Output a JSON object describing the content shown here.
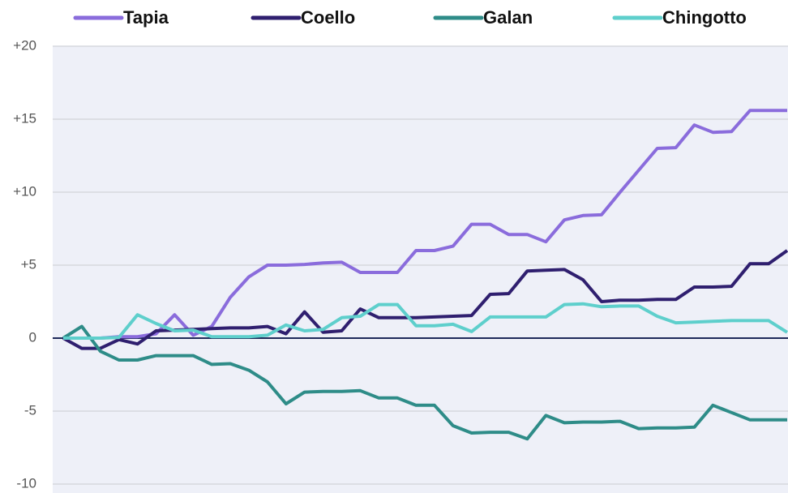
{
  "chart_data": {
    "type": "line",
    "categories": [
      null,
      null,
      null,
      null,
      null,
      null,
      null,
      null,
      null,
      null,
      null,
      null,
      null,
      null,
      null,
      null,
      null,
      null,
      null,
      null,
      null,
      null,
      null,
      null,
      null,
      null,
      null,
      null,
      null,
      null,
      null,
      null,
      null,
      null,
      null,
      null,
      null,
      null,
      null,
      null
    ],
    "series": [
      {
        "name": "Tapia",
        "color": "#8a6cdc",
        "values": [
          0,
          0,
          0,
          0.1,
          0.1,
          0.3,
          1.6,
          0.2,
          0.8,
          2.8,
          4.2,
          5.0,
          5.0,
          5.05,
          5.15,
          5.2,
          4.5,
          4.5,
          4.5,
          6.0,
          6.0,
          6.3,
          7.8,
          7.8,
          7.1,
          7.1,
          6.6,
          8.1,
          8.4,
          8.45,
          10.0,
          11.5,
          13.0,
          13.05,
          14.6,
          14.1,
          14.15,
          15.6,
          15.6,
          15.6
        ]
      },
      {
        "name": "Coello",
        "color": "#2f1f6f",
        "values": [
          0,
          -0.7,
          -0.7,
          -0.1,
          -0.4,
          0.5,
          0.55,
          0.6,
          0.65,
          0.7,
          0.7,
          0.8,
          0.3,
          1.8,
          0.4,
          0.5,
          2.0,
          1.4,
          1.4,
          1.4,
          1.45,
          1.5,
          1.55,
          3.0,
          3.05,
          4.6,
          4.65,
          4.7,
          4.0,
          2.5,
          2.6,
          2.6,
          2.65,
          2.65,
          3.5,
          3.5,
          3.55,
          5.1,
          5.1,
          6.0
        ]
      },
      {
        "name": "Galan",
        "color": "#2e8c88",
        "values": [
          0,
          0.8,
          -0.9,
          -1.5,
          -1.5,
          -1.2,
          -1.2,
          -1.2,
          -1.8,
          -1.75,
          -2.2,
          -3.0,
          -4.5,
          -3.7,
          -3.65,
          -3.65,
          -3.6,
          -4.1,
          -4.1,
          -4.6,
          -4.6,
          -6.0,
          -6.5,
          -6.45,
          -6.45,
          -6.9,
          -5.3,
          -5.8,
          -5.75,
          -5.75,
          -5.7,
          -6.2,
          -6.15,
          -6.15,
          -6.1,
          -4.6,
          -5.1,
          -5.6,
          -5.6,
          -5.6
        ]
      },
      {
        "name": "Chingotto",
        "color": "#5ecfcc",
        "values": [
          0,
          0,
          0,
          0.05,
          1.6,
          1.0,
          0.5,
          0.55,
          0.1,
          0.1,
          0.1,
          0.2,
          0.9,
          0.5,
          0.6,
          1.4,
          1.5,
          2.3,
          2.3,
          0.85,
          0.85,
          0.95,
          0.45,
          1.45,
          1.45,
          1.45,
          1.45,
          2.3,
          2.35,
          2.15,
          2.2,
          2.2,
          1.5,
          1.05,
          1.1,
          1.15,
          1.2,
          1.2,
          1.2,
          0.4
        ]
      }
    ],
    "ylim": [
      -10,
      20
    ],
    "yticks": [
      {
        "value": 20,
        "label": "+20"
      },
      {
        "value": 15,
        "label": "+15"
      },
      {
        "value": 10,
        "label": "+10"
      },
      {
        "value": 5,
        "label": "+5"
      },
      0,
      -5,
      -10
    ],
    "grid": true,
    "legend": "top"
  }
}
